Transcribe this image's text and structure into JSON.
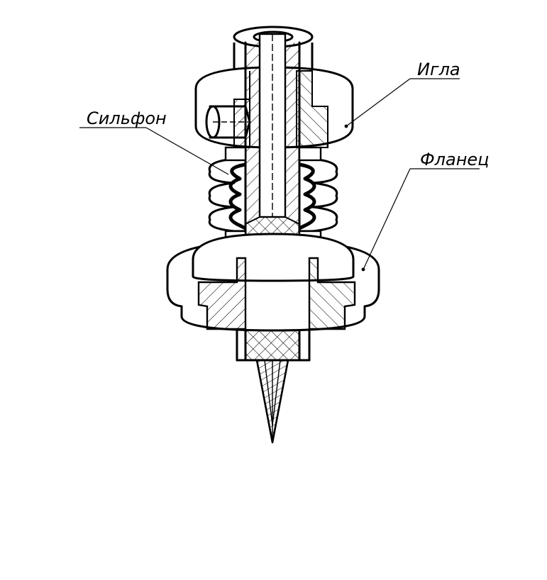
{
  "labels": {
    "needle": "Игла",
    "bellows": "Сильфон",
    "flange": "Фланец"
  },
  "colors": {
    "line": "#000000",
    "background": "#ffffff"
  }
}
